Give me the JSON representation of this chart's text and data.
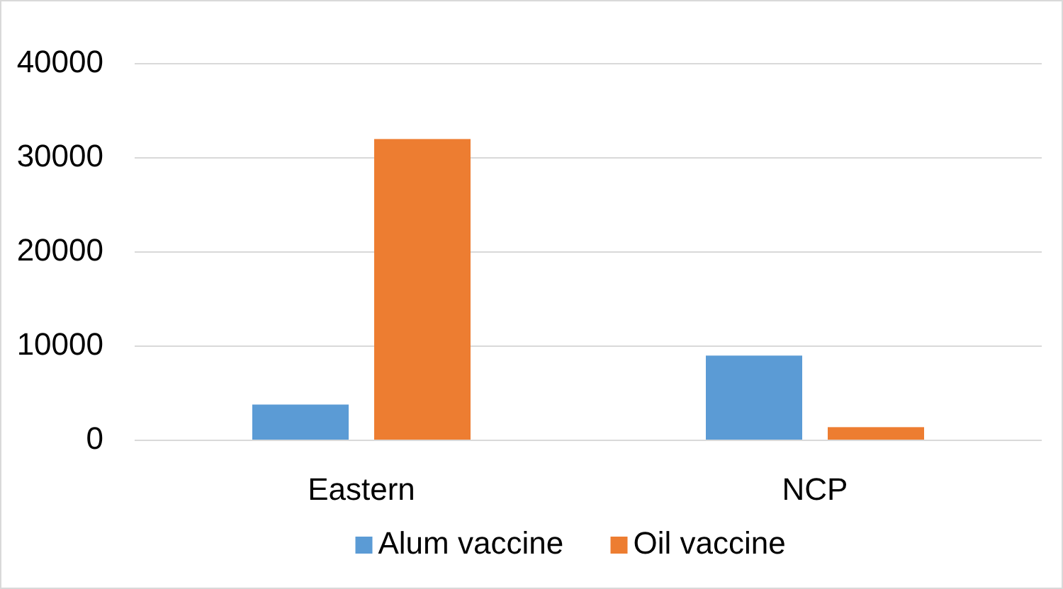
{
  "chart_data": {
    "type": "bar",
    "categories": [
      "Eastern",
      "NCP"
    ],
    "series": [
      {
        "name": "Alum vaccine",
        "color": "#5b9bd5",
        "values": [
          3800,
          9000
        ]
      },
      {
        "name": "Oil vaccine",
        "color": "#ed7d31",
        "values": [
          32000,
          1400
        ]
      }
    ],
    "ylim": [
      0,
      40000
    ],
    "yticks": [
      0,
      10000,
      20000,
      30000,
      40000
    ],
    "grid": "y",
    "legend": "bottom"
  }
}
